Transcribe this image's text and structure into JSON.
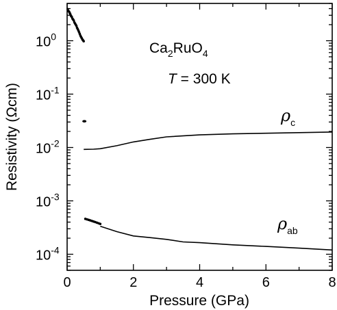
{
  "chart_data": {
    "type": "scatter",
    "title": "",
    "xlabel": "Pressure (GPa)",
    "ylabel": "Resistivity (Ωcm)",
    "xlim": [
      0,
      8
    ],
    "ylim": [
      5e-05,
      5
    ],
    "yscale": "log",
    "grid": false,
    "xticks": [
      0,
      2,
      4,
      6,
      8
    ],
    "yticks": [
      {
        "value": 1,
        "base": "10",
        "exp": "0"
      },
      {
        "value": 0.1,
        "base": "10",
        "exp": "-1"
      },
      {
        "value": 0.01,
        "base": "10",
        "exp": "-2"
      },
      {
        "value": 0.001,
        "base": "10",
        "exp": "-3"
      },
      {
        "value": 0.0001,
        "base": "10",
        "exp": "-4"
      }
    ],
    "annotations": {
      "compound": {
        "base": "Ca",
        "sub1": "2",
        "mid": "RuO",
        "sub2": "4"
      },
      "temperature": {
        "symbol": "T",
        "rest": " = 300 K"
      }
    },
    "series": [
      {
        "name": "ρc",
        "symbol": "ρ",
        "subscript": "c",
        "low_pressure_points": [
          [
            0.02,
            3.9
          ],
          [
            0.04,
            3.6
          ],
          [
            0.06,
            3.5
          ],
          [
            0.08,
            3.3
          ],
          [
            0.1,
            3.1
          ],
          [
            0.12,
            2.9
          ],
          [
            0.14,
            2.8
          ],
          [
            0.16,
            2.6
          ],
          [
            0.18,
            2.5
          ],
          [
            0.2,
            2.4
          ],
          [
            0.22,
            2.2
          ],
          [
            0.24,
            2.1
          ],
          [
            0.26,
            2.0
          ],
          [
            0.28,
            1.9
          ],
          [
            0.3,
            1.75
          ],
          [
            0.32,
            1.65
          ],
          [
            0.34,
            1.55
          ],
          [
            0.36,
            1.45
          ],
          [
            0.38,
            1.35
          ],
          [
            0.4,
            1.25
          ],
          [
            0.42,
            1.18
          ],
          [
            0.44,
            1.12
          ],
          [
            0.46,
            1.06
          ],
          [
            0.48,
            1.02
          ],
          [
            0.5,
            0.98
          ]
        ],
        "isolated_points": [
          [
            0.52,
            0.031
          ]
        ],
        "line": [
          [
            0.5,
            0.0092
          ],
          [
            0.8,
            0.0093
          ],
          [
            1.0,
            0.0095
          ],
          [
            1.5,
            0.0108
          ],
          [
            2.0,
            0.0127
          ],
          [
            2.5,
            0.0142
          ],
          [
            3.0,
            0.0158
          ],
          [
            4.0,
            0.0172
          ],
          [
            5.0,
            0.018
          ],
          [
            6.0,
            0.0185
          ],
          [
            7.0,
            0.019
          ],
          [
            8.0,
            0.0195
          ]
        ]
      },
      {
        "name": "ρab",
        "symbol": "ρ",
        "subscript": "ab",
        "low_pressure_points": [
          [
            0.55,
            0.00046
          ],
          [
            0.6,
            0.00045
          ],
          [
            0.65,
            0.00044
          ],
          [
            0.7,
            0.00043
          ],
          [
            0.75,
            0.00042
          ],
          [
            0.8,
            0.00041
          ],
          [
            0.85,
            0.0004
          ],
          [
            0.9,
            0.00039
          ],
          [
            0.95,
            0.00038
          ],
          [
            1.0,
            0.00037
          ]
        ],
        "line": [
          [
            1.0,
            0.000335
          ],
          [
            1.5,
            0.000265
          ],
          [
            2.0,
            0.00022
          ],
          [
            2.5,
            0.000205
          ],
          [
            3.0,
            0.00019
          ],
          [
            3.5,
            0.00017
          ],
          [
            4.0,
            0.000165
          ],
          [
            5.0,
            0.00015
          ],
          [
            6.0,
            0.00014
          ],
          [
            7.0,
            0.00013
          ],
          [
            8.0,
            0.00012
          ]
        ]
      }
    ]
  }
}
